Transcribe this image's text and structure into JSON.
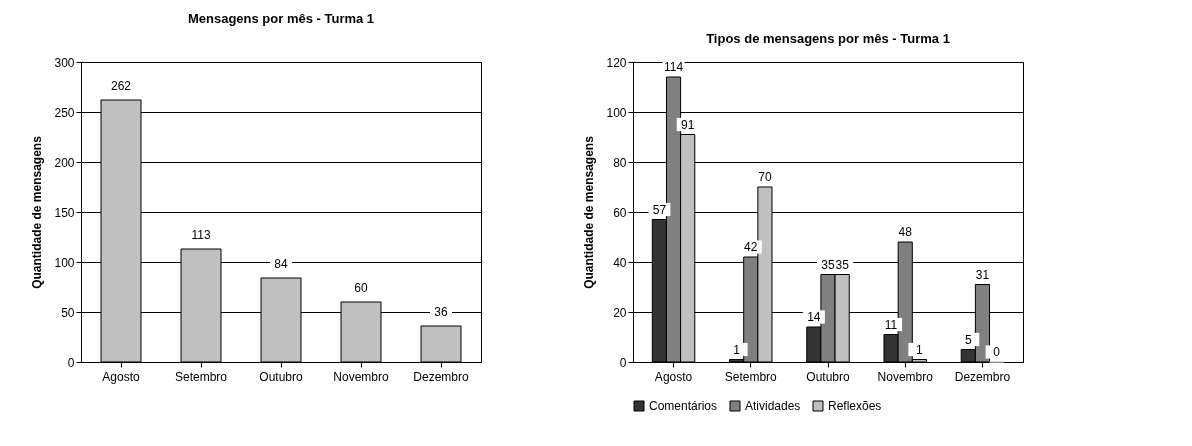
{
  "chart_data": [
    {
      "type": "bar",
      "title": "Mensagens por mês - Turma 1",
      "ylabel": "Quantidade de mensagens",
      "categories": [
        "Agosto",
        "Setembro",
        "Outubro",
        "Novembro",
        "Dezembro"
      ],
      "values": [
        262,
        113,
        84,
        60,
        36
      ],
      "color": "#c0c0c0",
      "ylim": [
        0,
        300
      ],
      "yticks": [
        0,
        50,
        100,
        150,
        200,
        250,
        300
      ],
      "grid": "y",
      "data_labels": true
    },
    {
      "type": "bar",
      "title": "Tipos de mensagens por mês - Turma 1",
      "ylabel": "Quantidade de mensagens",
      "categories": [
        "Agosto",
        "Setembro",
        "Outubro",
        "Novembro",
        "Dezembro"
      ],
      "series": [
        {
          "name": "Comentários",
          "color": "#333333",
          "values": [
            57,
            1,
            14,
            11,
            5
          ]
        },
        {
          "name": "Atividades",
          "color": "#808080",
          "values": [
            114,
            42,
            35,
            48,
            31
          ]
        },
        {
          "name": "Reflexões",
          "color": "#c0c0c0",
          "values": [
            91,
            70,
            35,
            1,
            0
          ]
        }
      ],
      "ylim": [
        0,
        120
      ],
      "yticks": [
        0,
        20,
        40,
        60,
        80,
        100,
        120
      ],
      "grid": "y",
      "data_labels": true,
      "legend": "bottom"
    }
  ]
}
